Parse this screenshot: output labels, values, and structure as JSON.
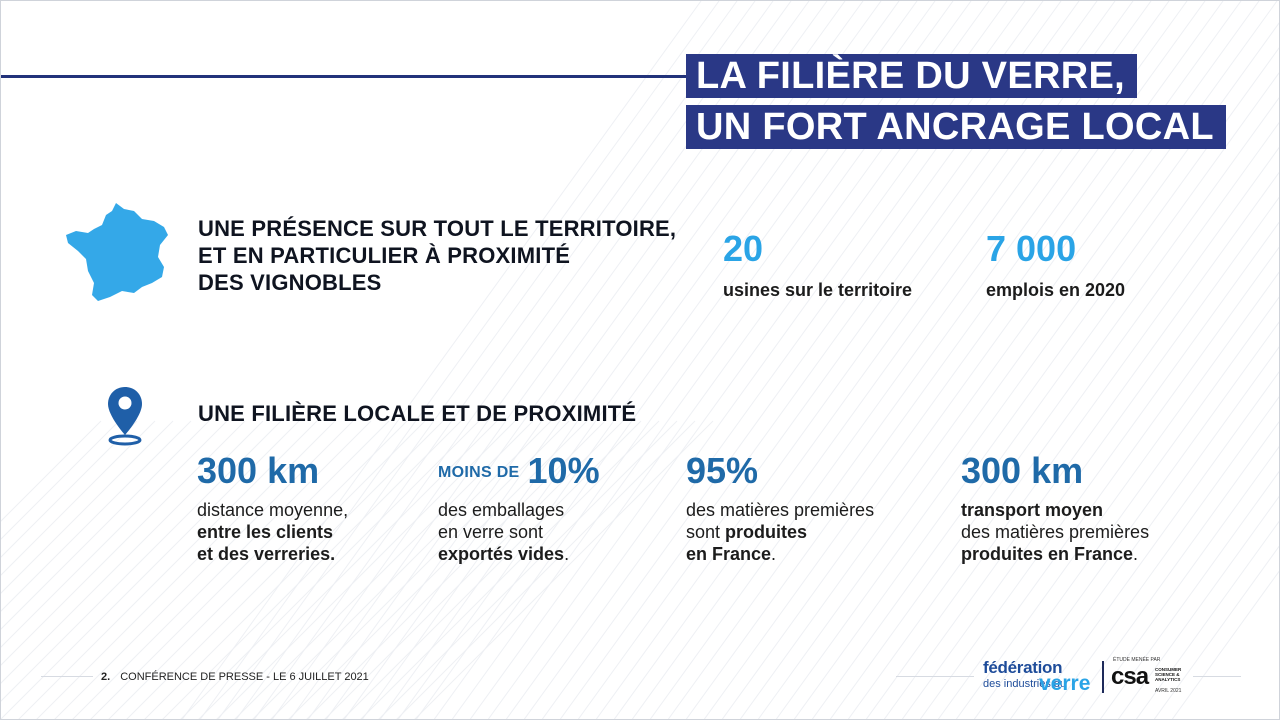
{
  "title": {
    "line1": "LA FILIÈRE DU VERRE,",
    "line2": "UN FORT ANCRAGE LOCAL"
  },
  "section1": {
    "heading_lines": [
      "UNE PRÉSENCE SUR TOUT LE TERRITOIRE,",
      "ET EN PARTICULIER À PROXIMITÉ",
      "DES VIGNOBLES"
    ],
    "icon": "france-map-icon",
    "stats": [
      {
        "value": "20",
        "label": "usines sur le territoire"
      },
      {
        "value": "7 000",
        "label": "emplois en 2020"
      }
    ]
  },
  "section2": {
    "heading": "UNE FILIÈRE LOCALE ET DE PROXIMITÉ",
    "icon": "location-pin-icon",
    "stats": [
      {
        "value": "300 km",
        "lines": [
          [
            {
              "t": "distance moyenne,",
              "b": false
            }
          ],
          [
            {
              "t": "entre les clients",
              "b": true
            }
          ],
          [
            {
              "t": "et des verreries.",
              "b": true
            }
          ]
        ]
      },
      {
        "prefix": "MOINS DE",
        "value": "10%",
        "lines": [
          [
            {
              "t": "des emballages",
              "b": false
            }
          ],
          [
            {
              "t": "en verre sont",
              "b": false
            }
          ],
          [
            {
              "t": "exportés vides",
              "b": true
            },
            {
              "t": ".",
              "b": false
            }
          ]
        ]
      },
      {
        "value": "95%",
        "lines": [
          [
            {
              "t": "des matières premières",
              "b": false
            }
          ],
          [
            {
              "t": "sont ",
              "b": false
            },
            {
              "t": "produites",
              "b": true
            }
          ],
          [
            {
              "t": "en France",
              "b": true
            },
            {
              "t": ".",
              "b": false
            }
          ]
        ]
      },
      {
        "value": "300 km",
        "lines": [
          [
            {
              "t": "transport moyen",
              "b": true
            }
          ],
          [
            {
              "t": "des matières premières",
              "b": false
            }
          ],
          [
            {
              "t": "produites en France",
              "b": true
            },
            {
              "t": ".",
              "b": false
            }
          ]
        ]
      }
    ]
  },
  "footer": {
    "page_number": "2.",
    "text": "CONFÉRENCE DE PRESSE - LE 6 JUILLET 2021"
  },
  "logos": {
    "federation": {
      "line1": "fédération",
      "line2": "des industries du",
      "line3": "verre"
    },
    "csa": {
      "top": "ÉTUDE MENÉE PAR",
      "main": "csa",
      "side": "CONSUMER SCIENCE & ANALYTICS",
      "date": "AVRIL 2021"
    }
  },
  "colors": {
    "navy": "#2a3886",
    "accent_blue": "#2aa4e6",
    "dark_blue": "#1f6aa8"
  }
}
